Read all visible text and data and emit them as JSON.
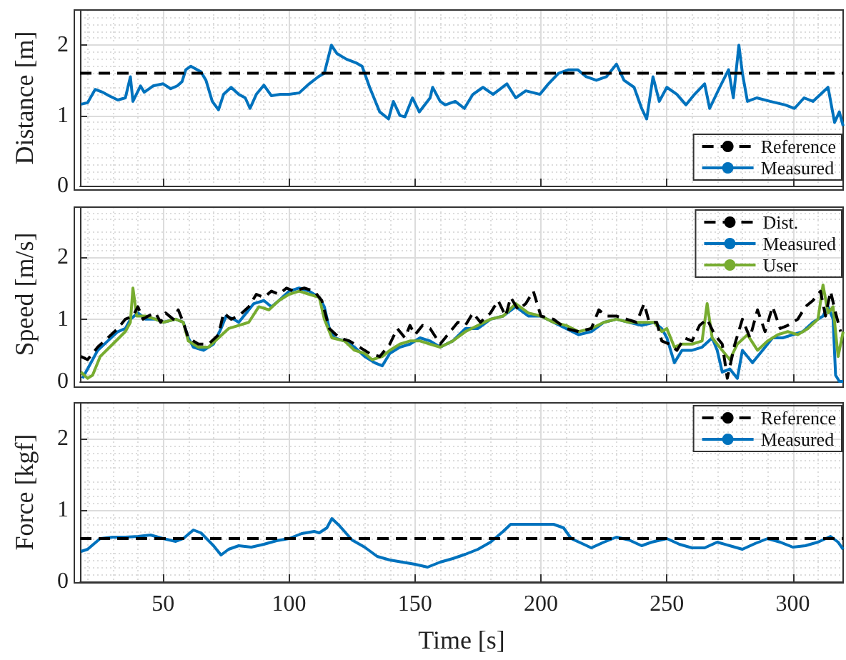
{
  "chart_data": [
    {
      "type": "line",
      "ylabel": "Distance [m]",
      "xlim": [
        17,
        320
      ],
      "xticks": [
        50,
        100,
        150,
        200,
        250,
        300
      ],
      "ylim": [
        0,
        2.5
      ],
      "yticks": [
        0,
        1,
        2
      ],
      "grid": true,
      "legend": "bottom right",
      "tick_labels": "y",
      "marker": "none",
      "series": [
        {
          "name": "Reference",
          "color": "#000000",
          "line_style": "dashed",
          "x": [
            17,
            320
          ],
          "values": [
            1.6,
            1.6
          ]
        },
        {
          "name": "Measured",
          "color": "#0072bd",
          "line_style": "solid",
          "x": [
            17.4,
            20,
            23,
            26,
            28.5,
            32,
            35,
            37,
            38,
            41,
            42.5,
            46,
            50,
            53,
            55.6,
            57.5,
            59,
            61,
            65,
            67,
            69.5,
            72,
            74,
            77,
            80,
            82.6,
            84.5,
            87,
            90,
            93,
            96.6,
            100,
            104,
            108,
            111.6,
            114,
            116.8,
            119,
            122.8,
            126.5,
            129,
            132,
            136,
            139.5,
            141.4,
            144,
            146,
            149,
            151.7,
            156,
            157,
            160,
            162,
            166,
            169.6,
            173,
            177,
            181,
            186.5,
            190,
            194,
            199.6,
            203,
            207,
            211,
            214.6,
            218,
            222,
            226,
            230,
            233,
            237,
            240,
            242,
            244.5,
            247,
            250,
            254,
            257.6,
            261,
            265,
            267,
            271,
            274.5,
            276.4,
            278.6,
            280,
            282,
            285.7,
            291,
            297,
            300.7,
            304.5,
            308,
            314,
            316.6,
            318.5,
            320
          ],
          "values": [
            1.16,
            1.18,
            1.37,
            1.33,
            1.28,
            1.22,
            1.25,
            1.55,
            1.2,
            1.42,
            1.33,
            1.42,
            1.45,
            1.38,
            1.42,
            1.48,
            1.65,
            1.7,
            1.62,
            1.5,
            1.2,
            1.08,
            1.3,
            1.4,
            1.3,
            1.25,
            1.1,
            1.3,
            1.43,
            1.28,
            1.3,
            1.3,
            1.32,
            1.45,
            1.55,
            1.6,
            2.0,
            1.88,
            1.8,
            1.75,
            1.7,
            1.4,
            1.05,
            0.95,
            1.2,
            1.0,
            0.98,
            1.25,
            1.05,
            1.25,
            1.4,
            1.2,
            1.15,
            1.2,
            1.1,
            1.3,
            1.4,
            1.3,
            1.45,
            1.25,
            1.35,
            1.3,
            1.45,
            1.6,
            1.65,
            1.65,
            1.55,
            1.5,
            1.55,
            1.73,
            1.5,
            1.4,
            1.1,
            0.95,
            1.55,
            1.2,
            1.4,
            1.3,
            1.15,
            1.3,
            1.45,
            1.1,
            1.4,
            1.65,
            1.25,
            2.0,
            1.6,
            1.2,
            1.25,
            1.2,
            1.15,
            1.1,
            1.25,
            1.2,
            1.4,
            0.9,
            1.05,
            0.85
          ]
        }
      ]
    },
    {
      "type": "line",
      "ylabel": "Speed [m/s]",
      "xlim": [
        17,
        320
      ],
      "xticks": [
        50,
        100,
        150,
        200,
        250,
        300
      ],
      "ylim": [
        0,
        2.8
      ],
      "yticks": [
        0,
        1,
        2
      ],
      "grid": true,
      "legend": "top right",
      "tick_labels": "y",
      "marker": "none",
      "series": [
        {
          "name": "Dist.",
          "color": "#000000",
          "line_style": "dashed",
          "x": [
            17.4,
            20,
            24,
            28,
            32,
            35,
            38,
            40,
            42,
            44,
            47,
            49,
            51,
            54,
            56,
            58,
            60,
            64,
            68,
            72,
            74,
            77,
            80,
            84,
            87,
            90,
            93,
            96,
            99,
            102,
            106,
            110,
            113,
            116,
            120,
            124,
            128,
            132,
            136,
            140,
            143,
            146,
            148,
            150,
            153,
            156,
            160,
            164,
            167,
            170,
            173,
            176,
            180,
            183,
            186,
            188,
            191,
            194,
            197,
            200,
            205,
            210,
            215,
            220,
            223,
            226,
            230,
            234,
            238,
            241,
            243,
            246,
            248,
            251,
            254,
            257,
            260,
            263,
            266,
            269,
            272,
            274,
            277,
            280,
            283,
            286,
            289,
            292,
            295,
            298,
            302,
            305,
            308,
            311,
            313,
            315,
            317,
            319
          ],
          "values": [
            0.4,
            0.35,
            0.55,
            0.7,
            0.85,
            1.0,
            1.05,
            1.2,
            1.0,
            1.05,
            1.1,
            0.95,
            1.1,
            1.0,
            1.15,
            0.95,
            0.7,
            0.6,
            0.6,
            0.75,
            1.1,
            1.0,
            1.05,
            1.2,
            1.4,
            1.35,
            1.45,
            1.4,
            1.5,
            1.45,
            1.5,
            1.45,
            1.3,
            0.85,
            0.7,
            0.65,
            0.55,
            0.45,
            0.4,
            0.6,
            0.85,
            0.7,
            0.9,
            0.75,
            0.9,
            0.85,
            0.6,
            0.8,
            0.95,
            0.9,
            1.1,
            0.95,
            1.1,
            1.3,
            1.05,
            1.35,
            1.15,
            1.25,
            1.45,
            1.05,
            1.0,
            0.85,
            0.8,
            0.85,
            1.15,
            1.05,
            1.05,
            1.0,
            0.95,
            1.25,
            0.95,
            0.95,
            0.65,
            0.6,
            0.5,
            0.7,
            0.65,
            0.9,
            1.0,
            0.75,
            0.6,
            0.05,
            0.6,
            1.0,
            0.7,
            1.15,
            0.8,
            1.2,
            0.85,
            0.9,
            1.0,
            1.2,
            1.3,
            1.45,
            1.05,
            1.45,
            1.1,
            0.8
          ]
        },
        {
          "name": "Measured",
          "color": "#0072bd",
          "line_style": "solid",
          "x": [
            18,
            20,
            24,
            28,
            32,
            35,
            37,
            40,
            43,
            47,
            50,
            55,
            58,
            60,
            62,
            66,
            70,
            73,
            75,
            78,
            80,
            83,
            86,
            90,
            93,
            96,
            100,
            104,
            108,
            112,
            114,
            116,
            118,
            122,
            126,
            130,
            134,
            137,
            140,
            144,
            148,
            152,
            156,
            160,
            165,
            170,
            175,
            180,
            185,
            190,
            195,
            200,
            205,
            210,
            215,
            220,
            225,
            230,
            235,
            240,
            245,
            248,
            250,
            253,
            256,
            260,
            264,
            268,
            270,
            272,
            275,
            278,
            280,
            284,
            288,
            292,
            296,
            300,
            304,
            308,
            312,
            314,
            316,
            317,
            318.5,
            320
          ],
          "values": [
            0.05,
            0.2,
            0.5,
            0.65,
            0.8,
            0.85,
            1.0,
            1.1,
            1.0,
            1.0,
            0.95,
            1.0,
            0.95,
            0.7,
            0.55,
            0.5,
            0.6,
            0.85,
            1.05,
            1.0,
            0.95,
            1.1,
            1.25,
            1.3,
            1.2,
            1.3,
            1.45,
            1.5,
            1.45,
            1.35,
            1.2,
            0.85,
            0.7,
            0.65,
            0.55,
            0.4,
            0.3,
            0.25,
            0.45,
            0.55,
            0.6,
            0.7,
            0.65,
            0.55,
            0.65,
            0.85,
            0.85,
            1.0,
            1.05,
            1.2,
            1.05,
            1.05,
            0.95,
            0.85,
            0.75,
            0.8,
            0.95,
            1.0,
            0.95,
            0.9,
            0.95,
            0.85,
            0.7,
            0.3,
            0.5,
            0.5,
            0.55,
            0.7,
            0.5,
            0.15,
            0.2,
            0.05,
            0.5,
            0.3,
            0.5,
            0.7,
            0.7,
            0.75,
            0.8,
            0.95,
            1.05,
            1.2,
            1.0,
            0.1,
            0.0,
            0.0
          ]
        },
        {
          "name": "User",
          "color": "#77ac30",
          "line_style": "solid",
          "x": [
            17.4,
            20,
            22,
            25,
            30,
            35,
            37,
            38,
            39.5,
            43,
            47,
            50,
            55,
            58,
            60,
            64,
            68,
            72,
            76,
            80,
            84,
            88,
            92,
            96,
            100,
            104,
            108,
            112,
            114,
            117,
            122,
            126,
            130,
            133,
            137,
            140,
            144,
            148,
            152,
            156,
            160,
            165,
            170,
            175,
            180,
            185,
            190,
            195,
            200,
            205,
            210,
            215,
            220,
            225,
            230,
            235,
            240,
            245,
            248,
            250,
            253,
            256,
            260,
            264,
            266,
            268,
            272,
            275,
            278,
            282,
            286,
            290,
            294,
            298,
            302,
            306,
            310,
            312,
            314,
            316,
            318,
            320
          ],
          "values": [
            0.15,
            0.05,
            0.1,
            0.4,
            0.6,
            0.8,
            0.95,
            1.5,
            1.05,
            1.05,
            1.0,
            0.95,
            1.0,
            0.95,
            0.65,
            0.55,
            0.55,
            0.7,
            0.85,
            0.9,
            0.95,
            1.2,
            1.15,
            1.3,
            1.4,
            1.45,
            1.4,
            1.35,
            1.0,
            0.7,
            0.65,
            0.5,
            0.45,
            0.35,
            0.4,
            0.5,
            0.6,
            0.65,
            0.65,
            0.6,
            0.55,
            0.65,
            0.8,
            0.9,
            1.0,
            1.05,
            1.25,
            1.1,
            1.05,
            0.95,
            0.9,
            0.8,
            0.85,
            0.95,
            1.0,
            0.95,
            0.95,
            0.95,
            0.8,
            0.85,
            0.55,
            0.6,
            0.6,
            0.65,
            1.25,
            0.7,
            0.5,
            0.35,
            0.6,
            0.75,
            0.5,
            0.65,
            0.75,
            0.8,
            0.75,
            0.85,
            1.0,
            1.55,
            1.1,
            1.2,
            0.4,
            0.8
          ]
        }
      ]
    },
    {
      "type": "line",
      "xlabel": "Time [s]",
      "ylabel": "Force [kgf]",
      "xlim": [
        17,
        320
      ],
      "xticks": [
        50,
        100,
        150,
        200,
        250,
        300
      ],
      "ylim": [
        0,
        2.5
      ],
      "yticks": [
        0,
        1,
        2
      ],
      "grid": true,
      "legend": "top right",
      "marker": "none",
      "series": [
        {
          "name": "Reference",
          "color": "#000000",
          "line_style": "dashed",
          "x": [
            17,
            320
          ],
          "values": [
            0.6,
            0.6
          ]
        },
        {
          "name": "Measured",
          "color": "#0072bd",
          "line_style": "solid",
          "x": [
            17.4,
            20,
            25,
            30,
            35,
            40,
            45,
            50,
            55,
            58,
            62,
            65,
            70,
            73,
            76,
            80,
            85,
            90,
            95,
            100,
            105,
            110,
            112,
            115,
            117,
            120,
            125,
            130,
            135,
            140,
            145,
            150,
            155,
            160,
            165,
            170,
            175,
            180,
            185,
            188,
            195,
            200,
            205,
            209,
            212,
            217,
            220,
            225,
            230,
            235,
            240,
            244,
            250,
            255,
            260,
            265,
            270,
            275,
            280,
            285,
            290,
            295,
            300,
            305,
            310,
            315,
            318,
            320
          ],
          "values": [
            0.42,
            0.45,
            0.6,
            0.62,
            0.62,
            0.63,
            0.65,
            0.6,
            0.56,
            0.6,
            0.72,
            0.68,
            0.5,
            0.37,
            0.45,
            0.5,
            0.48,
            0.52,
            0.57,
            0.6,
            0.67,
            0.7,
            0.68,
            0.75,
            0.88,
            0.78,
            0.58,
            0.48,
            0.35,
            0.3,
            0.27,
            0.24,
            0.2,
            0.27,
            0.32,
            0.38,
            0.45,
            0.55,
            0.7,
            0.8,
            0.8,
            0.8,
            0.8,
            0.75,
            0.6,
            0.52,
            0.47,
            0.55,
            0.62,
            0.58,
            0.5,
            0.55,
            0.6,
            0.52,
            0.47,
            0.47,
            0.55,
            0.5,
            0.45,
            0.53,
            0.6,
            0.55,
            0.48,
            0.5,
            0.55,
            0.63,
            0.55,
            0.45
          ]
        }
      ]
    }
  ]
}
